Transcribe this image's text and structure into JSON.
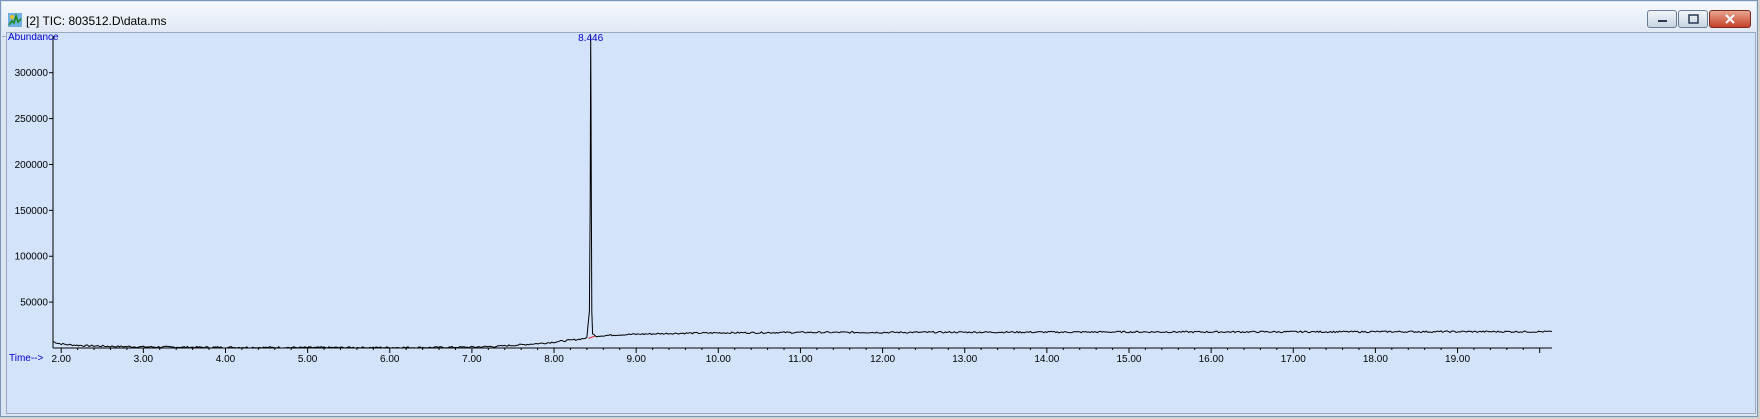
{
  "window": {
    "title": "[2] TIC: 803512.D\\data.ms",
    "icon": "chromatogram-app-icon"
  },
  "chart_data": {
    "type": "line",
    "xlabel": "Time-->",
    "ylabel": "Abundance",
    "xlim": [
      1.9,
      20.15
    ],
    "ylim": [
      0,
      340000
    ],
    "x_ticks": [
      "2.00",
      "3.00",
      "4.00",
      "5.00",
      "6.00",
      "7.00",
      "8.00",
      "9.00",
      "10.00",
      "11.00",
      "12.00",
      "13.00",
      "14.00",
      "15.00",
      "16.00",
      "17.00",
      "18.00",
      "19.00"
    ],
    "y_ticks": [
      "50000",
      "100000",
      "150000",
      "200000",
      "250000",
      "300000"
    ],
    "peaks": [
      {
        "x": 8.446,
        "label": "8.446",
        "y": 340000
      }
    ],
    "series": [
      {
        "x": [
          1.9,
          1.95,
          2.0,
          2.1,
          2.3,
          2.6,
          3.0,
          3.5,
          4.0,
          4.5,
          5.0,
          5.5,
          6.0,
          6.5,
          7.0,
          7.3,
          7.6,
          7.9,
          8.1,
          8.3,
          8.4,
          8.43,
          8.44,
          8.446,
          8.45,
          8.455,
          8.46,
          8.47,
          8.5,
          8.6,
          8.8,
          9.0,
          9.5,
          10.0,
          11.0,
          12.0,
          13.0,
          14.0,
          15.0,
          16.0,
          17.0,
          18.0,
          19.0,
          20.15
        ],
        "y": [
          7000,
          5500,
          4500,
          3500,
          2500,
          1800,
          1200,
          900,
          700,
          600,
          500,
          500,
          500,
          600,
          1000,
          1800,
          3500,
          5500,
          7500,
          9500,
          11000,
          40000,
          160000,
          340000,
          270000,
          150000,
          40000,
          16000,
          13000,
          13500,
          14500,
          15000,
          16000,
          16500,
          17000,
          17000,
          17200,
          17300,
          17500,
          17500,
          17600,
          17700,
          17800,
          17800
        ]
      }
    ]
  },
  "colors": {
    "plot_background": "#d3e3fa",
    "trace": "#000000",
    "peak_label": "#0000cc",
    "axis_label": "#0000cc",
    "baseline_marker": "#e02020"
  }
}
